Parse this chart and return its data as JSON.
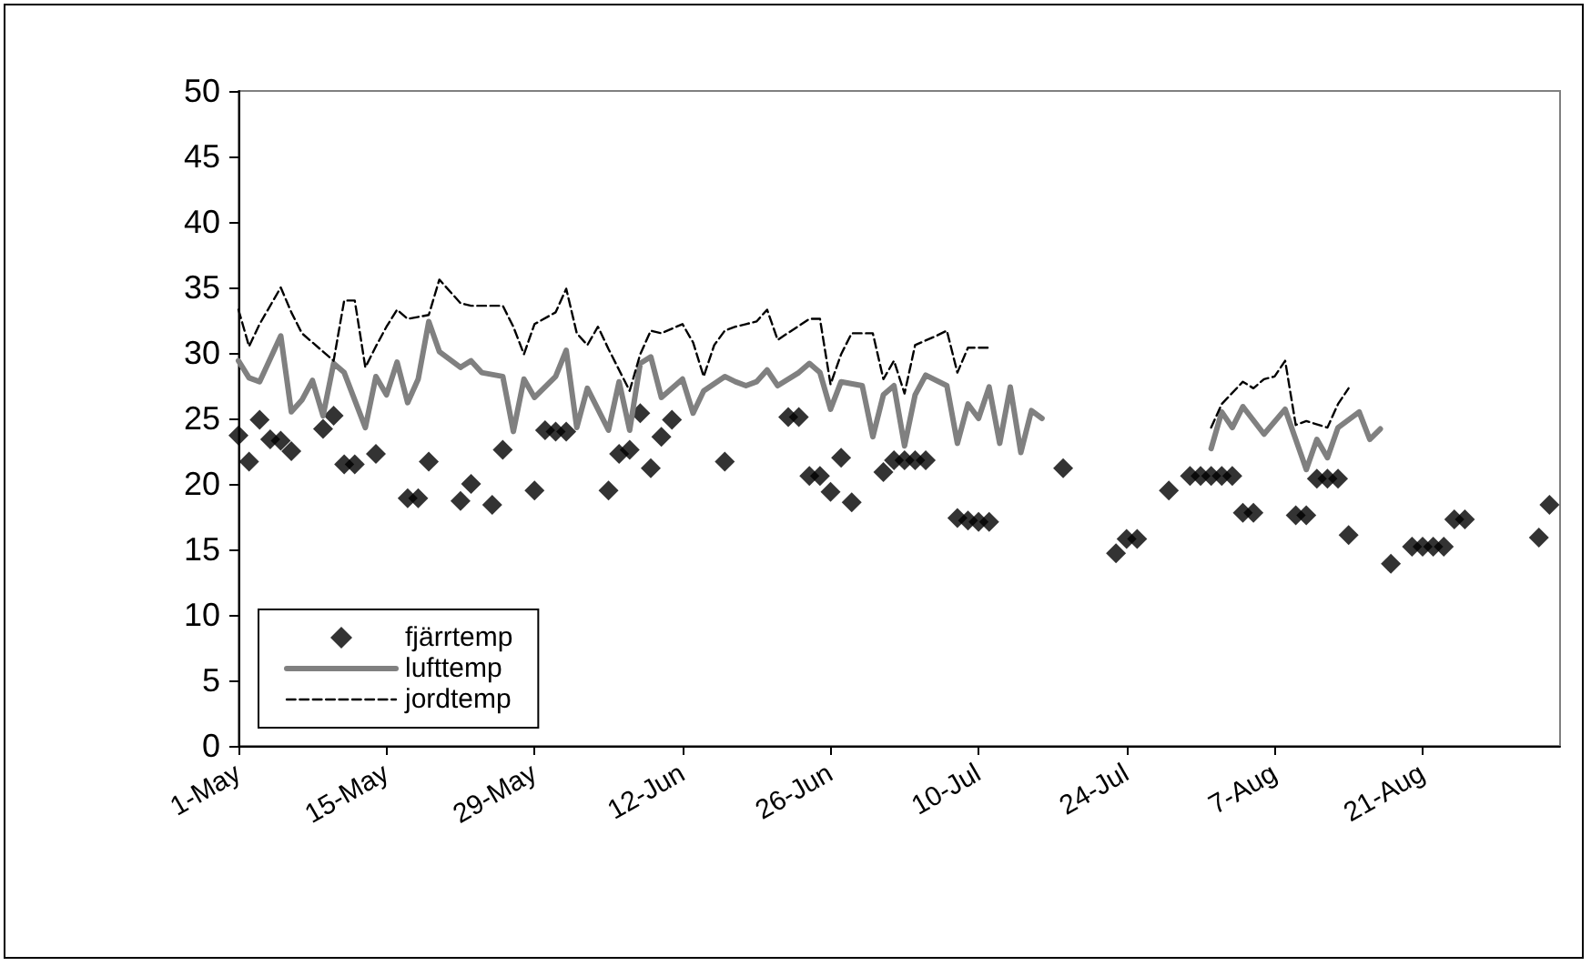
{
  "chart_data": {
    "type": "line",
    "xlim": [
      "--05-01",
      "--09-03"
    ],
    "xticks": [
      {
        "value": "--05-01",
        "label": "1-May"
      },
      {
        "value": "--05-15",
        "label": "15-May"
      },
      {
        "value": "--05-29",
        "label": "29-May"
      },
      {
        "value": "--06-12",
        "label": "12-Jun"
      },
      {
        "value": "--06-26",
        "label": "26-Jun"
      },
      {
        "value": "--07-10",
        "label": "10-Jul"
      },
      {
        "value": "--07-24",
        "label": "24-Jul"
      },
      {
        "value": "--08-07",
        "label": "7-Aug"
      },
      {
        "value": "--08-21",
        "label": "21-Aug"
      }
    ],
    "ylim": [
      0,
      50
    ],
    "yticks": [
      0,
      5,
      10,
      15,
      20,
      25,
      30,
      35,
      40,
      45,
      50
    ],
    "grid": false,
    "legend": "bottom left",
    "series": [
      {
        "name": "fjärrtemp",
        "type": "scatter",
        "marker": "diamond",
        "color": "#000000",
        "x": [
          "--05-01",
          "--05-02",
          "--05-03",
          "--05-04",
          "--05-05",
          "--05-06",
          "--05-09",
          "--05-10",
          "--05-11",
          "--05-12",
          "--05-14",
          "--05-17",
          "--05-18",
          "--05-19",
          "--05-22",
          "--05-23",
          "--05-25",
          "--05-26",
          "--05-29",
          "--05-30",
          "--05-31",
          "--06-01",
          "--06-05",
          "--06-06",
          "--06-07",
          "--06-08",
          "--06-09",
          "--06-10",
          "--06-11",
          "--06-16",
          "--06-22",
          "--06-23",
          "--06-24",
          "--06-25",
          "--06-26",
          "--06-27",
          "--06-28",
          "--07-01",
          "--07-02",
          "--07-03",
          "--07-04",
          "--07-05",
          "--07-08",
          "--07-09",
          "--07-10",
          "--07-11",
          "--07-18",
          "--07-23",
          "--07-24",
          "--07-25",
          "--07-28",
          "--07-30",
          "--07-31",
          "--08-01",
          "--08-02",
          "--08-03",
          "--08-04",
          "--08-05",
          "--08-09",
          "--08-10",
          "--08-11",
          "--08-12",
          "--08-13",
          "--08-14",
          "--08-18",
          "--08-20",
          "--08-21",
          "--08-22",
          "--08-23",
          "--08-24",
          "--08-25",
          "--09-01",
          "--09-02"
        ],
        "values": [
          23.7,
          21.7,
          24.9,
          23.4,
          23.3,
          22.5,
          24.2,
          25.2,
          21.5,
          21.5,
          22.3,
          18.9,
          18.9,
          21.7,
          18.7,
          20.0,
          18.4,
          22.6,
          19.5,
          24.1,
          24.0,
          24.0,
          19.5,
          22.3,
          22.6,
          25.4,
          21.2,
          23.6,
          24.9,
          21.7,
          25.1,
          25.1,
          20.6,
          20.6,
          19.4,
          22.0,
          18.6,
          20.9,
          21.8,
          21.8,
          21.8,
          21.8,
          17.4,
          17.2,
          17.1,
          17.1,
          21.2,
          14.7,
          15.8,
          15.8,
          19.5,
          20.6,
          20.6,
          20.6,
          20.6,
          20.6,
          17.8,
          17.8,
          17.6,
          17.6,
          20.4,
          20.4,
          20.4,
          16.1,
          13.9,
          15.2,
          15.2,
          15.2,
          15.2,
          17.3,
          17.3,
          15.9,
          18.4
        ]
      },
      {
        "name": "lufttemp",
        "marker": "none",
        "line_style": "solid",
        "color": "#808080",
        "x": [
          "--05-01",
          "--05-02",
          "--05-03",
          "--05-05",
          "--05-06",
          "--05-07",
          "--05-08",
          "--05-09",
          "--05-10",
          "--05-11",
          "--05-13",
          "--05-14",
          "--05-15",
          "--05-16",
          "--05-17",
          "--05-18",
          "--05-19",
          "--05-20",
          "--05-22",
          "--05-23",
          "--05-24",
          "--05-26",
          "--05-27",
          "--05-28",
          "--05-29",
          "--05-31",
          "--06-01",
          "--06-02",
          "--06-03",
          "--06-05",
          "--06-06",
          "--06-07",
          "--06-08",
          "--06-09",
          "--06-10",
          "--06-12",
          "--06-13",
          "--06-14",
          "--06-16",
          "--06-17",
          "--06-18",
          "--06-19",
          "--06-20",
          "--06-21",
          "--06-23",
          "--06-24",
          "--06-25",
          "--06-26",
          "--06-27",
          "--06-29",
          "--06-30",
          "--07-01",
          "--07-02",
          "--07-03",
          "--07-04",
          "--07-05",
          "--07-07",
          "--07-08",
          "--07-09",
          "--07-10",
          "--07-11",
          "--07-12",
          "--07-13",
          "--07-14",
          "--07-15",
          "--07-16",
          "--07-25",
          "--08-01",
          "--08-02",
          "--08-03",
          "--08-04",
          "--08-06",
          "--08-08",
          "--08-10",
          "--08-11",
          "--08-12",
          "--08-13",
          "--08-15",
          "--08-16",
          "--08-17"
        ],
        "values": [
          29.4,
          28.1,
          27.8,
          31.3,
          25.5,
          26.4,
          27.9,
          25.2,
          29.2,
          28.5,
          24.3,
          28.2,
          26.8,
          29.3,
          26.2,
          28.0,
          32.4,
          30.1,
          28.9,
          29.4,
          28.5,
          28.2,
          24.0,
          28.0,
          26.6,
          28.2,
          30.2,
          24.3,
          27.3,
          24.1,
          27.8,
          24.1,
          29.2,
          29.7,
          26.6,
          28.0,
          25.4,
          27.1,
          28.2,
          27.8,
          27.5,
          27.8,
          28.7,
          27.5,
          28.5,
          29.2,
          28.5,
          25.7,
          27.8,
          27.5,
          23.6,
          26.8,
          27.5,
          22.9,
          26.8,
          28.3,
          27.5,
          23.1,
          26.1,
          25.0,
          27.4,
          23.1,
          27.4,
          22.4,
          25.6,
          25.0,
          null,
          22.7,
          25.5,
          24.3,
          25.9,
          23.8,
          25.7,
          21.1,
          23.4,
          22.0,
          24.3,
          25.5,
          23.4,
          24.2
        ]
      },
      {
        "name": "jordtemp",
        "marker": "none",
        "line_style": "dashed",
        "color": "#000000",
        "x": [
          "--05-01",
          "--05-02",
          "--05-03",
          "--05-05",
          "--05-06",
          "--05-07",
          "--05-10",
          "--05-11",
          "--05-12",
          "--05-13",
          "--05-14",
          "--05-15",
          "--05-16",
          "--05-17",
          "--05-19",
          "--05-20",
          "--05-22",
          "--05-23",
          "--05-26",
          "--05-27",
          "--05-28",
          "--05-29",
          "--05-31",
          "--06-01",
          "--06-02",
          "--06-03",
          "--06-04",
          "--06-05",
          "--06-06",
          "--06-07",
          "--06-08",
          "--06-09",
          "--06-10",
          "--06-12",
          "--06-13",
          "--06-14",
          "--06-15",
          "--06-16",
          "--06-17",
          "--06-18",
          "--06-19",
          "--06-20",
          "--06-21",
          "--06-24",
          "--06-25",
          "--06-26",
          "--06-27",
          "--06-28",
          "--06-30",
          "--07-01",
          "--07-02",
          "--07-03",
          "--07-04",
          "--07-06",
          "--07-07",
          "--07-08",
          "--07-09",
          "--07-11",
          "--07-25",
          "--08-01",
          "--08-02",
          "--08-04",
          "--08-05",
          "--08-06",
          "--08-07",
          "--08-08",
          "--08-09",
          "--08-10",
          "--08-12",
          "--08-13",
          "--08-14"
        ],
        "values": [
          33.3,
          30.5,
          32.2,
          35.0,
          33.1,
          31.5,
          29.4,
          34.0,
          34.0,
          28.9,
          30.5,
          32.0,
          33.3,
          32.6,
          32.9,
          35.6,
          33.8,
          33.6,
          33.6,
          32.0,
          29.9,
          32.2,
          33.1,
          34.9,
          31.5,
          30.6,
          32.0,
          30.3,
          28.7,
          27.1,
          29.9,
          31.7,
          31.5,
          32.2,
          30.8,
          28.2,
          30.6,
          31.7,
          32.0,
          32.2,
          32.4,
          33.3,
          31.0,
          32.6,
          32.6,
          27.6,
          29.9,
          31.5,
          31.5,
          28.0,
          29.4,
          26.9,
          30.6,
          31.3,
          31.7,
          28.5,
          30.4,
          30.4,
          null,
          24.3,
          26.1,
          27.8,
          27.3,
          28.0,
          28.2,
          29.4,
          24.5,
          24.8,
          24.3,
          26.1,
          27.3
        ]
      }
    ]
  }
}
